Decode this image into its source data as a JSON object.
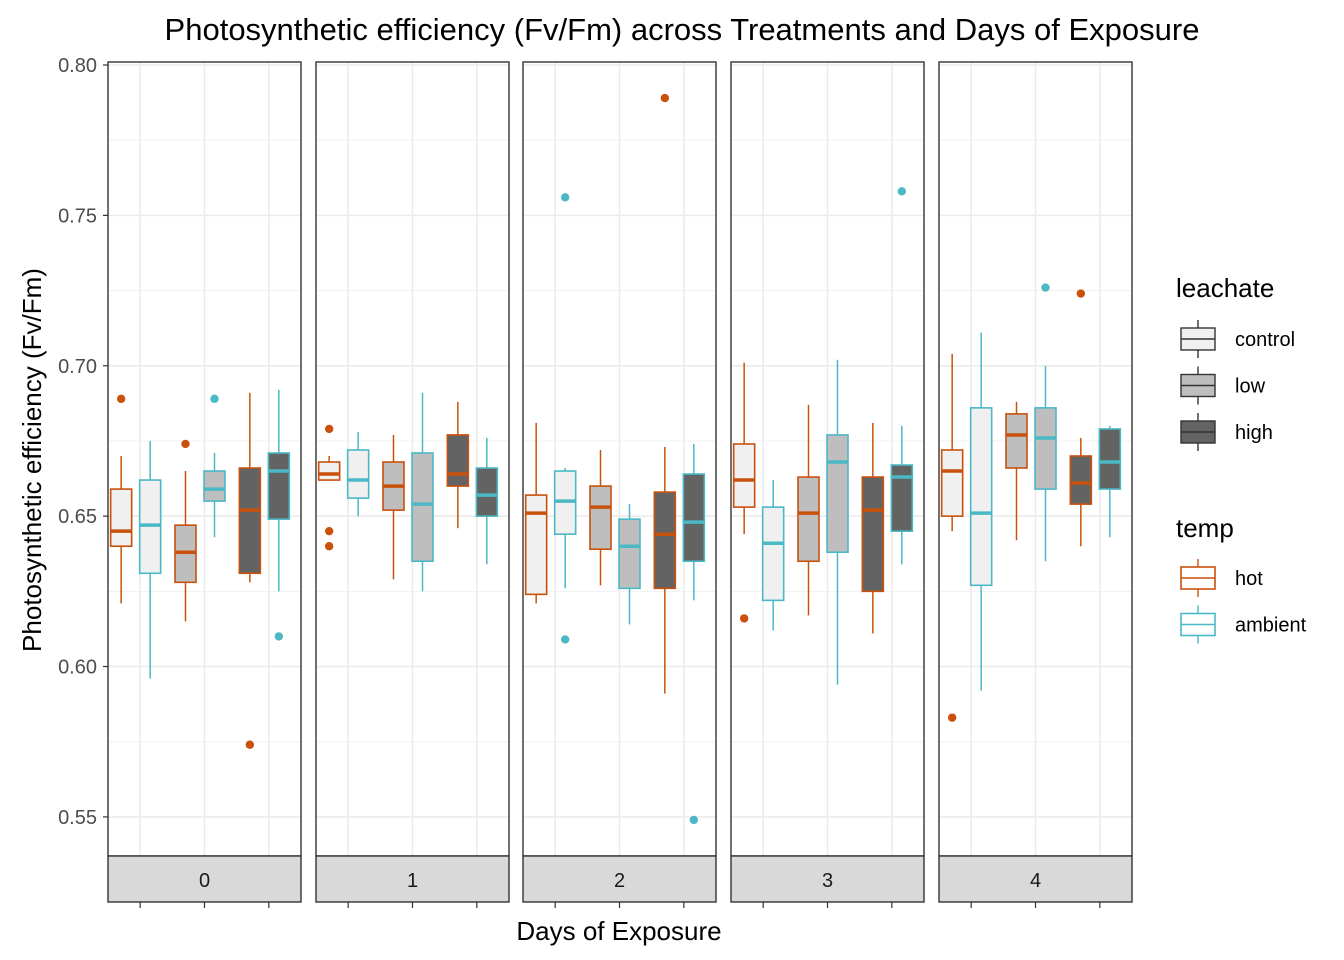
{
  "chart_data": {
    "type": "box",
    "title": "Photosynthetic efficiency (Fv/Fm) across Treatments and Days of Exposure",
    "xlabel": "Days of Exposure",
    "ylabel": "Photosynthetic efficiency (Fv/Fm)",
    "ylim": [
      0.537,
      0.801
    ],
    "yticks": [
      "0.55",
      "0.60",
      "0.65",
      "0.70",
      "0.75",
      "0.80"
    ],
    "ytick_values": [
      0.55,
      0.6,
      0.65,
      0.7,
      0.75,
      0.8
    ],
    "grid": true,
    "facets": [
      "0",
      "1",
      "2",
      "3",
      "4"
    ],
    "legend": {
      "placement": "right",
      "fill_title": "leachate",
      "fill_items": [
        {
          "label": "control",
          "color": "#F0F0F0"
        },
        {
          "label": "low",
          "color": "#BEBEBE"
        },
        {
          "label": "high",
          "color": "#636363"
        }
      ],
      "color_title": "temp",
      "color_items": [
        {
          "label": "hot",
          "color": "#C9510C"
        },
        {
          "label": "ambient",
          "color": "#4BB8C5"
        }
      ]
    },
    "panels": [
      {
        "day": "0",
        "boxes": [
          {
            "leachate": "control",
            "temp": "hot",
            "min": 0.621,
            "q1": 0.64,
            "median": 0.645,
            "q3": 0.659,
            "max": 0.67,
            "outliers": [
              0.689
            ]
          },
          {
            "leachate": "control",
            "temp": "ambient",
            "min": 0.596,
            "q1": 0.631,
            "median": 0.647,
            "q3": 0.662,
            "max": 0.675,
            "outliers": []
          },
          {
            "leachate": "low",
            "temp": "hot",
            "min": 0.615,
            "q1": 0.628,
            "median": 0.638,
            "q3": 0.647,
            "max": 0.665,
            "outliers": [
              0.674
            ]
          },
          {
            "leachate": "low",
            "temp": "ambient",
            "min": 0.643,
            "q1": 0.655,
            "median": 0.659,
            "q3": 0.665,
            "max": 0.671,
            "outliers": [
              0.689
            ]
          },
          {
            "leachate": "high",
            "temp": "hot",
            "min": 0.628,
            "q1": 0.631,
            "median": 0.652,
            "q3": 0.666,
            "max": 0.691,
            "outliers": [
              0.574
            ]
          },
          {
            "leachate": "high",
            "temp": "ambient",
            "min": 0.625,
            "q1": 0.649,
            "median": 0.665,
            "q3": 0.671,
            "max": 0.692,
            "outliers": [
              0.61
            ]
          }
        ]
      },
      {
        "day": "1",
        "boxes": [
          {
            "leachate": "control",
            "temp": "hot",
            "min": 0.662,
            "q1": 0.662,
            "median": 0.664,
            "q3": 0.668,
            "max": 0.67,
            "outliers": [
              0.679,
              0.645,
              0.64
            ]
          },
          {
            "leachate": "control",
            "temp": "ambient",
            "min": 0.65,
            "q1": 0.656,
            "median": 0.662,
            "q3": 0.672,
            "max": 0.678,
            "outliers": []
          },
          {
            "leachate": "low",
            "temp": "hot",
            "min": 0.629,
            "q1": 0.652,
            "median": 0.66,
            "q3": 0.668,
            "max": 0.677,
            "outliers": []
          },
          {
            "leachate": "low",
            "temp": "ambient",
            "min": 0.625,
            "q1": 0.635,
            "median": 0.654,
            "q3": 0.671,
            "max": 0.691,
            "outliers": []
          },
          {
            "leachate": "high",
            "temp": "hot",
            "min": 0.646,
            "q1": 0.66,
            "median": 0.664,
            "q3": 0.677,
            "max": 0.688,
            "outliers": []
          },
          {
            "leachate": "high",
            "temp": "ambient",
            "min": 0.634,
            "q1": 0.65,
            "median": 0.657,
            "q3": 0.666,
            "max": 0.676,
            "outliers": []
          }
        ]
      },
      {
        "day": "2",
        "boxes": [
          {
            "leachate": "control",
            "temp": "hot",
            "min": 0.621,
            "q1": 0.624,
            "median": 0.651,
            "q3": 0.657,
            "max": 0.681,
            "outliers": []
          },
          {
            "leachate": "control",
            "temp": "ambient",
            "min": 0.626,
            "q1": 0.644,
            "median": 0.655,
            "q3": 0.665,
            "max": 0.666,
            "outliers": [
              0.756,
              0.609
            ]
          },
          {
            "leachate": "low",
            "temp": "hot",
            "min": 0.627,
            "q1": 0.639,
            "median": 0.653,
            "q3": 0.66,
            "max": 0.672,
            "outliers": []
          },
          {
            "leachate": "low",
            "temp": "ambient",
            "min": 0.614,
            "q1": 0.626,
            "median": 0.64,
            "q3": 0.649,
            "max": 0.654,
            "outliers": []
          },
          {
            "leachate": "high",
            "temp": "hot",
            "min": 0.591,
            "q1": 0.626,
            "median": 0.644,
            "q3": 0.658,
            "max": 0.673,
            "outliers": [
              0.789
            ]
          },
          {
            "leachate": "high",
            "temp": "ambient",
            "min": 0.622,
            "q1": 0.635,
            "median": 0.648,
            "q3": 0.664,
            "max": 0.674,
            "outliers": [
              0.549
            ]
          }
        ]
      },
      {
        "day": "3",
        "boxes": [
          {
            "leachate": "control",
            "temp": "hot",
            "min": 0.644,
            "q1": 0.653,
            "median": 0.662,
            "q3": 0.674,
            "max": 0.701,
            "outliers": [
              0.616
            ]
          },
          {
            "leachate": "control",
            "temp": "ambient",
            "min": 0.612,
            "q1": 0.622,
            "median": 0.641,
            "q3": 0.653,
            "max": 0.662,
            "outliers": []
          },
          {
            "leachate": "low",
            "temp": "hot",
            "min": 0.617,
            "q1": 0.635,
            "median": 0.651,
            "q3": 0.663,
            "max": 0.687,
            "outliers": []
          },
          {
            "leachate": "low",
            "temp": "ambient",
            "min": 0.594,
            "q1": 0.638,
            "median": 0.668,
            "q3": 0.677,
            "max": 0.702,
            "outliers": []
          },
          {
            "leachate": "high",
            "temp": "hot",
            "min": 0.611,
            "q1": 0.625,
            "median": 0.652,
            "q3": 0.663,
            "max": 0.681,
            "outliers": []
          },
          {
            "leachate": "high",
            "temp": "ambient",
            "min": 0.634,
            "q1": 0.645,
            "median": 0.663,
            "q3": 0.667,
            "max": 0.68,
            "outliers": [
              0.758
            ]
          }
        ]
      },
      {
        "day": "4",
        "boxes": [
          {
            "leachate": "control",
            "temp": "hot",
            "min": 0.645,
            "q1": 0.65,
            "median": 0.665,
            "q3": 0.672,
            "max": 0.704,
            "outliers": [
              0.583
            ]
          },
          {
            "leachate": "control",
            "temp": "ambient",
            "min": 0.592,
            "q1": 0.627,
            "median": 0.651,
            "q3": 0.686,
            "max": 0.711,
            "outliers": []
          },
          {
            "leachate": "low",
            "temp": "hot",
            "min": 0.642,
            "q1": 0.666,
            "median": 0.677,
            "q3": 0.684,
            "max": 0.688,
            "outliers": []
          },
          {
            "leachate": "low",
            "temp": "ambient",
            "min": 0.635,
            "q1": 0.659,
            "median": 0.676,
            "q3": 0.686,
            "max": 0.7,
            "outliers": [
              0.726
            ]
          },
          {
            "leachate": "high",
            "temp": "hot",
            "min": 0.64,
            "q1": 0.654,
            "median": 0.661,
            "q3": 0.67,
            "max": 0.676,
            "outliers": [
              0.724
            ]
          },
          {
            "leachate": "high",
            "temp": "ambient",
            "min": 0.643,
            "q1": 0.659,
            "median": 0.668,
            "q3": 0.679,
            "max": 0.68,
            "outliers": []
          }
        ]
      }
    ]
  }
}
